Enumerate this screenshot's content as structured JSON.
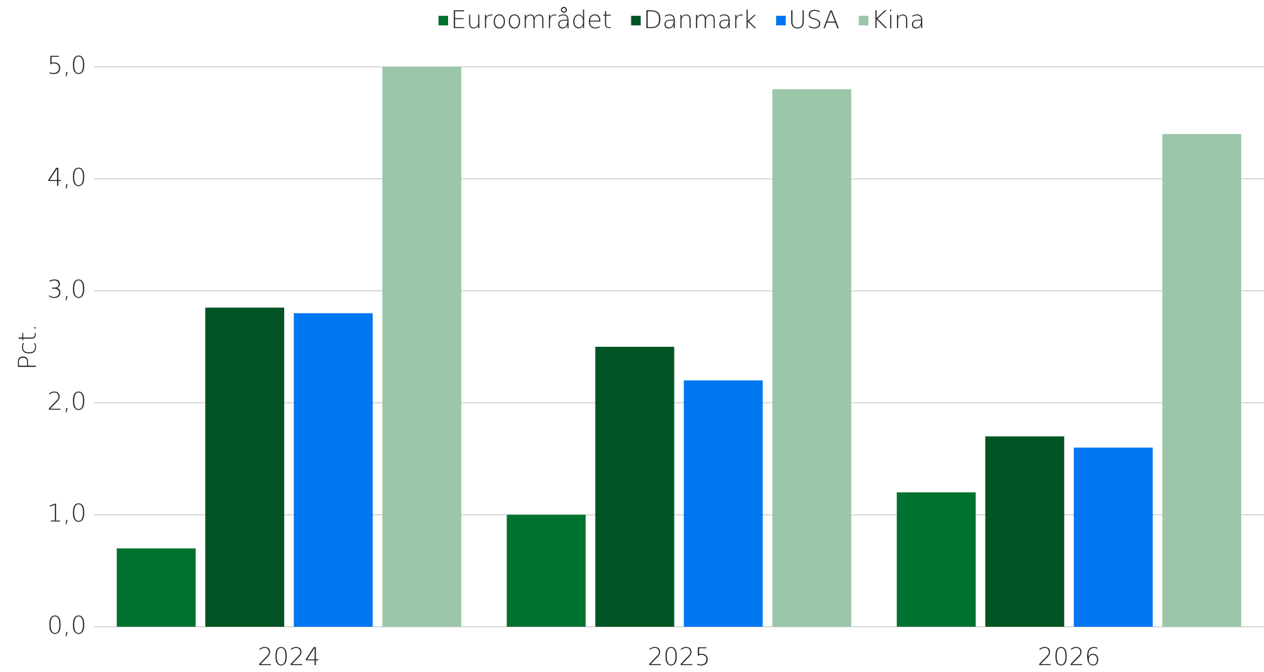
{
  "chart_data": {
    "type": "bar",
    "ylabel": "Pct.",
    "categories": [
      "2024",
      "2025",
      "2026"
    ],
    "series": [
      {
        "name": "Euroområdet",
        "color": "#00722f",
        "values": [
          0.7,
          1.0,
          1.2
        ]
      },
      {
        "name": "Danmark",
        "color": "#005423",
        "values": [
          2.85,
          2.5,
          1.7
        ]
      },
      {
        "name": "USA",
        "color": "#0077f0",
        "values": [
          2.8,
          2.2,
          1.6
        ]
      },
      {
        "name": "Kina",
        "color": "#9bc6a9",
        "values": [
          5.0,
          4.8,
          4.4
        ]
      }
    ],
    "ylim": [
      0,
      5
    ],
    "yticks": [
      {
        "value": 0,
        "label": "0,0"
      },
      {
        "value": 1,
        "label": "1,0"
      },
      {
        "value": 2,
        "label": "2,0"
      },
      {
        "value": 3,
        "label": "3,0"
      },
      {
        "value": 4,
        "label": "4,0"
      },
      {
        "value": 5,
        "label": "5,0"
      }
    ],
    "grid": true,
    "legend": "top"
  }
}
